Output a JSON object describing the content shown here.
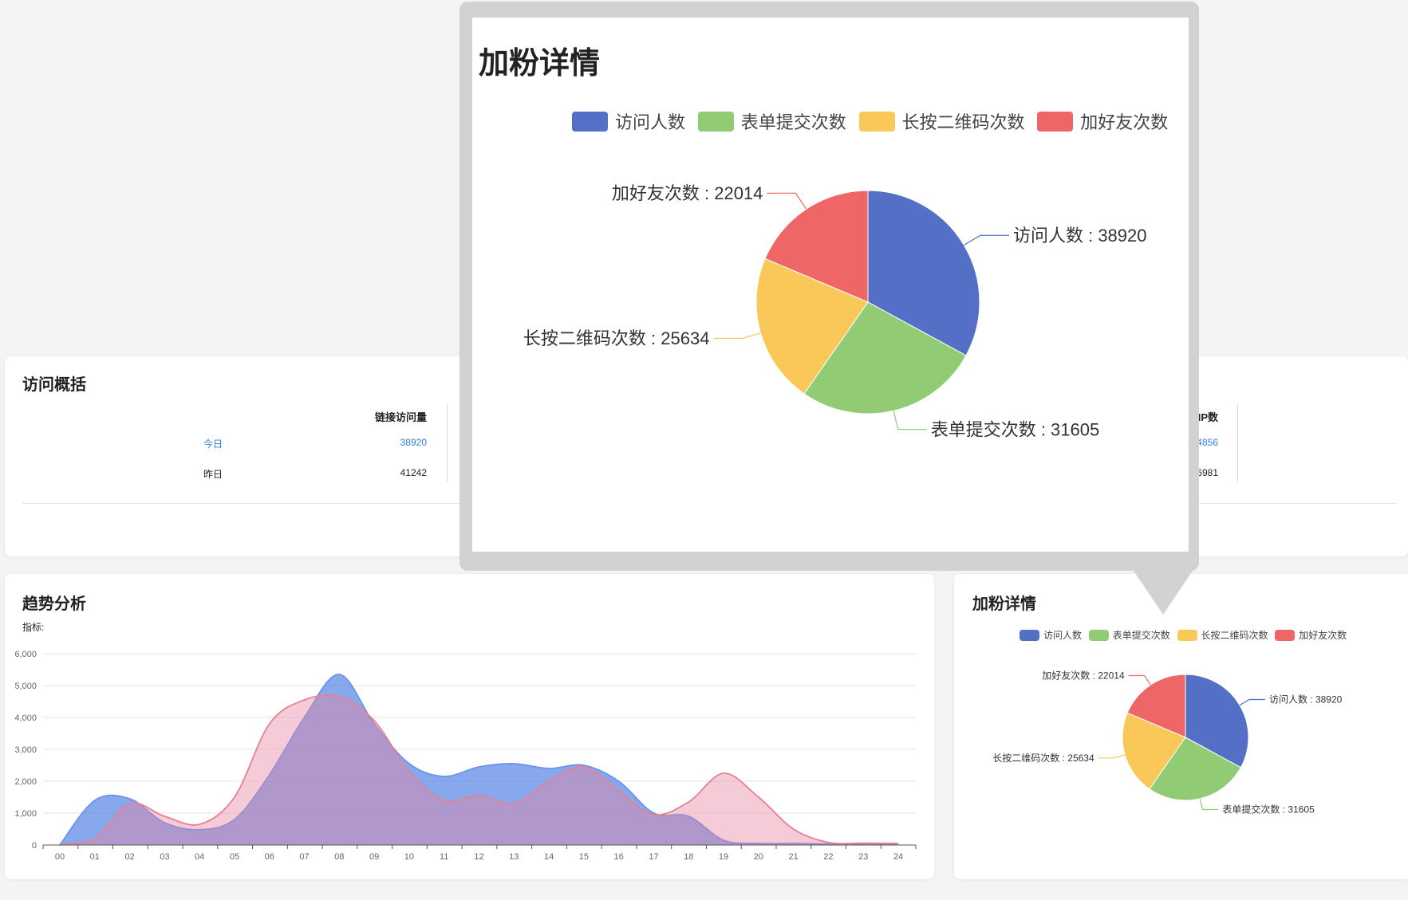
{
  "overview": {
    "title": "访问概括",
    "columns": [
      {
        "header": "链接访问量",
        "today": "38920",
        "yesterday": "41242"
      },
      {
        "header": "IP数",
        "today": "34856",
        "yesterday": "36981"
      }
    ],
    "row_labels": {
      "today": "今日",
      "yesterday": "昨日"
    }
  },
  "trend": {
    "title": "趋势分析",
    "indicator_label": "指标:",
    "chart_data": {
      "type": "area",
      "categories": [
        "00",
        "01",
        "02",
        "03",
        "04",
        "05",
        "06",
        "07",
        "08",
        "09",
        "10",
        "11",
        "12",
        "13",
        "14",
        "15",
        "16",
        "17",
        "18",
        "19",
        "20",
        "21",
        "22",
        "23",
        "24"
      ],
      "ylim": [
        0,
        6000
      ],
      "yticks": [
        "0",
        "1,000",
        "2,000",
        "3,000",
        "4,000",
        "5,000",
        "6,000"
      ],
      "grid": true,
      "series": [
        {
          "color": "#6a93ee",
          "values": [
            0,
            1400,
            1450,
            700,
            480,
            800,
            2200,
            4000,
            5350,
            3800,
            2550,
            2150,
            2450,
            2550,
            2400,
            2500,
            2000,
            1000,
            900,
            150,
            50,
            50,
            30,
            20,
            10
          ]
        },
        {
          "color": "#e8808f",
          "values": [
            0,
            200,
            1300,
            900,
            650,
            1500,
            3800,
            4550,
            4650,
            3900,
            2300,
            1400,
            1550,
            1300,
            2000,
            2450,
            1700,
            950,
            1350,
            2250,
            1500,
            500,
            80,
            60,
            50
          ]
        }
      ]
    }
  },
  "fans": {
    "title": "加粉详情",
    "chart_data": {
      "type": "pie",
      "legend_position": "top-center",
      "slices": [
        {
          "name": "访问人数",
          "value": 38920,
          "color": "#5470c6"
        },
        {
          "name": "表单提交次数",
          "value": 31605,
          "color": "#91cc75"
        },
        {
          "name": "长按二维码次数",
          "value": 25634,
          "color": "#fac858"
        },
        {
          "name": "加好友次数",
          "value": 22014,
          "color": "#ee6666"
        }
      ]
    }
  },
  "popup": {
    "title": "加粉详情"
  }
}
